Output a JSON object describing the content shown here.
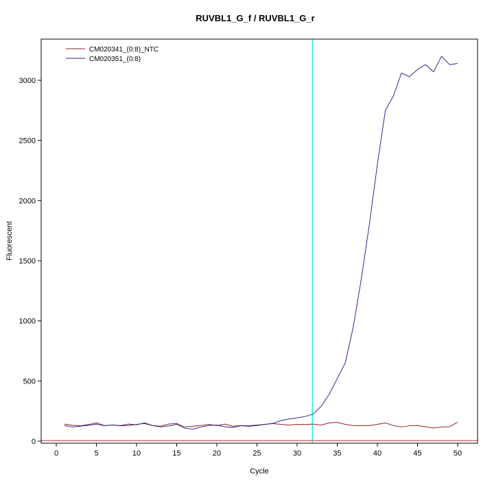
{
  "chart_data": {
    "type": "line",
    "title": "RUVBL1_G_f / RUVBL1_G_r",
    "xlabel": "Cycle",
    "ylabel": "Fluorescent",
    "xlim": [
      0,
      50
    ],
    "ylim": [
      0,
      3000
    ],
    "xticks": [
      0,
      5,
      10,
      15,
      20,
      25,
      30,
      35,
      40,
      45,
      50
    ],
    "yticks": [
      0,
      500,
      1000,
      1500,
      2000,
      2500,
      3000
    ],
    "grid": false,
    "legend_position": "top-left",
    "x": [
      1,
      2,
      3,
      4,
      5,
      6,
      7,
      8,
      9,
      10,
      11,
      12,
      13,
      14,
      15,
      16,
      17,
      18,
      19,
      20,
      21,
      22,
      23,
      24,
      25,
      26,
      27,
      28,
      29,
      30,
      31,
      32,
      33,
      34,
      35,
      36,
      37,
      38,
      39,
      40,
      41,
      42,
      43,
      44,
      45,
      46,
      47,
      48,
      49,
      50
    ],
    "series": [
      {
        "name": "CM020341_(0:8)_NTC",
        "color": "#8b2323",
        "values": [
          142,
          132,
          128,
          138,
          152,
          130,
          134,
          128,
          130,
          140,
          146,
          130,
          124,
          142,
          148,
          118,
          124,
          130,
          140,
          130,
          142,
          124,
          130,
          128,
          134,
          140,
          146,
          140,
          134,
          140,
          138,
          142,
          134,
          152,
          156,
          140,
          130,
          128,
          130,
          140,
          152,
          130,
          118,
          128,
          130,
          120,
          110,
          118,
          120,
          158
        ]
      },
      {
        "name": "CM020351_(0:8)",
        "color": "#2a2a8c",
        "values": [
          130,
          118,
          125,
          132,
          142,
          128,
          135,
          130,
          142,
          136,
          152,
          130,
          118,
          126,
          140,
          108,
          100,
          118,
          130,
          134,
          120,
          114,
          128,
          124,
          130,
          140,
          148,
          172,
          184,
          194,
          205,
          225,
          290,
          390,
          520,
          650,
          950,
          1350,
          1800,
          2300,
          2750,
          2870,
          3060,
          3030,
          3090,
          3130,
          3070,
          3200,
          3130,
          3140
        ]
      }
    ],
    "threshold_vline": {
      "x": 31.9,
      "color": "#00e0e0"
    },
    "baseline_hline": {
      "y": 5,
      "color": "#cd2626"
    }
  }
}
